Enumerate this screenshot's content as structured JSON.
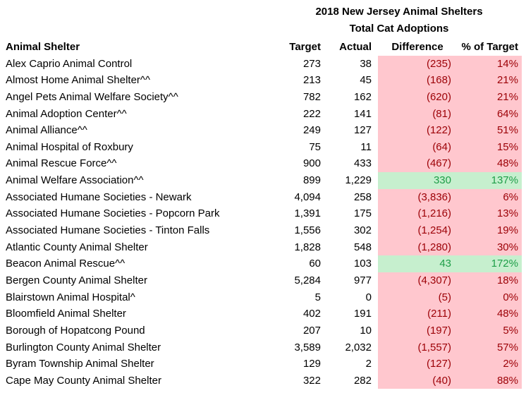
{
  "title_line1": "2018 New Jersey Animal Shelters",
  "title_line2": "Total Cat Adoptions",
  "colors": {
    "below_target_fill": "#FFC7CE",
    "below_target_text": "#9C0006",
    "above_target_fill": "#C6EFCE",
    "above_target_text": "#1E9E48"
  },
  "headers": [
    "Animal Shelter",
    "Target",
    "Actual",
    "Difference",
    "% of Target"
  ],
  "rows": [
    {
      "name": "Alex Caprio Animal Control",
      "target": "273",
      "actual": "38",
      "difference": "(235)",
      "pct": "14%",
      "status": "below"
    },
    {
      "name": "Almost Home Animal Shelter^^",
      "target": "213",
      "actual": "45",
      "difference": "(168)",
      "pct": "21%",
      "status": "below"
    },
    {
      "name": "Angel Pets Animal Welfare Society^^",
      "target": "782",
      "actual": "162",
      "difference": "(620)",
      "pct": "21%",
      "status": "below"
    },
    {
      "name": "Animal Adoption Center^^",
      "target": "222",
      "actual": "141",
      "difference": "(81)",
      "pct": "64%",
      "status": "below"
    },
    {
      "name": "Animal Alliance^^",
      "target": "249",
      "actual": "127",
      "difference": "(122)",
      "pct": "51%",
      "status": "below"
    },
    {
      "name": "Animal Hospital of Roxbury",
      "target": "75",
      "actual": "11",
      "difference": "(64)",
      "pct": "15%",
      "status": "below"
    },
    {
      "name": "Animal Rescue Force^^",
      "target": "900",
      "actual": "433",
      "difference": "(467)",
      "pct": "48%",
      "status": "below"
    },
    {
      "name": "Animal Welfare Association^^",
      "target": "899",
      "actual": "1,229",
      "difference": "330",
      "pct": "137%",
      "status": "above"
    },
    {
      "name": "Associated Humane Societies - Newark",
      "target": "4,094",
      "actual": "258",
      "difference": "(3,836)",
      "pct": "6%",
      "status": "below"
    },
    {
      "name": "Associated Humane Societies - Popcorn Park",
      "target": "1,391",
      "actual": "175",
      "difference": "(1,216)",
      "pct": "13%",
      "status": "below"
    },
    {
      "name": "Associated Humane Societies - Tinton Falls",
      "target": "1,556",
      "actual": "302",
      "difference": "(1,254)",
      "pct": "19%",
      "status": "below"
    },
    {
      "name": "Atlantic County Animal Shelter",
      "target": "1,828",
      "actual": "548",
      "difference": "(1,280)",
      "pct": "30%",
      "status": "below"
    },
    {
      "name": "Beacon Animal Rescue^^",
      "target": "60",
      "actual": "103",
      "difference": "43",
      "pct": "172%",
      "status": "above"
    },
    {
      "name": "Bergen County Animal Shelter",
      "target": "5,284",
      "actual": "977",
      "difference": "(4,307)",
      "pct": "18%",
      "status": "below"
    },
    {
      "name": "Blairstown Animal Hospital^",
      "target": "5",
      "actual": "0",
      "difference": "(5)",
      "pct": "0%",
      "status": "below"
    },
    {
      "name": "Bloomfield Animal Shelter",
      "target": "402",
      "actual": "191",
      "difference": "(211)",
      "pct": "48%",
      "status": "below"
    },
    {
      "name": "Borough of Hopatcong Pound",
      "target": "207",
      "actual": "10",
      "difference": "(197)",
      "pct": "5%",
      "status": "below"
    },
    {
      "name": "Burlington County Animal Shelter",
      "target": "3,589",
      "actual": "2,032",
      "difference": "(1,557)",
      "pct": "57%",
      "status": "below"
    },
    {
      "name": "Byram Township Animal Shelter",
      "target": "129",
      "actual": "2",
      "difference": "(127)",
      "pct": "2%",
      "status": "below"
    },
    {
      "name": "Cape May County Animal Shelter",
      "target": "322",
      "actual": "282",
      "difference": "(40)",
      "pct": "88%",
      "status": "below"
    }
  ]
}
